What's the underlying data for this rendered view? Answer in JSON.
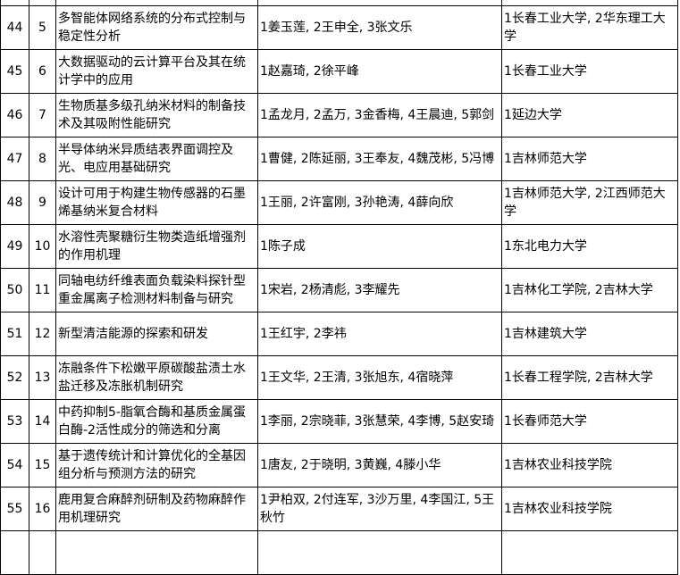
{
  "rows": [
    {
      "no": "44",
      "sub": "5",
      "title": "多智能体网络系统的分布式控制与稳定性分析",
      "authors": "1姜玉莲, 2王申全, 3张文乐",
      "units": "1长春工业大学, 2华东理工大学"
    },
    {
      "no": "45",
      "sub": "6",
      "title": "大数据驱动的云计算平台及其在统计学中的应用",
      "authors": "1赵嘉琦, 2徐平峰",
      "units": "1长春工业大学"
    },
    {
      "no": "46",
      "sub": "7",
      "title": "生物质基多级孔纳米材料的制备技术及其吸附性能研究",
      "authors": "1孟龙月, 2孟万, 3金香梅, 4王晨迪, 5郭剑",
      "units": "1延边大学"
    },
    {
      "no": "47",
      "sub": "8",
      "title": "半导体纳米异质结表界面调控及光、电应用基础研究",
      "authors": "1曹健, 2陈延丽, 3王奉友, 4魏茂彬, 5冯博",
      "units": "1吉林师范大学"
    },
    {
      "no": "48",
      "sub": "9",
      "title": "设计可用于构建生物传感器的石墨烯基纳米复合材料",
      "authors": "1王丽, 2许富刚, 3孙艳涛, 4薛向欣",
      "units": "1吉林师范大学, 2江西师范大学"
    },
    {
      "no": "49",
      "sub": "10",
      "title": "水溶性壳聚糖衍生物类造纸增强剂的作用机理",
      "authors": "1陈子成",
      "units": "1东北电力大学"
    },
    {
      "no": "50",
      "sub": "11",
      "title": "同轴电纺纤维表面负载染料探针型重金属离子检测材料制备与研究",
      "authors": "1宋岩, 2杨清彪, 3李耀先",
      "units": "1吉林化工学院, 2吉林大学"
    },
    {
      "no": "51",
      "sub": "12",
      "title": "新型清洁能源的探索和研发",
      "authors": "1王红宇, 2李祎",
      "units": "1吉林建筑大学"
    },
    {
      "no": "52",
      "sub": "13",
      "title": "冻融条件下松嫩平原碳酸盐渍土水盐迁移及冻胀机制研究",
      "authors": "1王文华, 2王清, 3张旭东, 4宿晓萍",
      "units": "1长春工程学院, 2吉林大学"
    },
    {
      "no": "53",
      "sub": "14",
      "title": "中药抑制5-脂氧合酶和基质金属蛋白酶-2活性成分的筛选和分离",
      "authors": "1李丽, 2宗晓菲, 3张慧荣, 4李博, 5赵安琦",
      "units": "1长春师范大学"
    },
    {
      "no": "54",
      "sub": "15",
      "title": "基于遗传统计和计算优化的全基因组分析与预测方法的研究",
      "authors": "1唐友, 2于晓明, 3黄巍, 4滕小华",
      "units": "1吉林农业科技学院"
    },
    {
      "no": "55",
      "sub": "16",
      "title": "鹿用复合麻醉剂研制及药物麻醉作用机理研究",
      "authors": "1尹柏双, 2付连军, 3沙万里, 4李国江, 5王秋竹",
      "units": "1吉林农业科技学院"
    }
  ]
}
